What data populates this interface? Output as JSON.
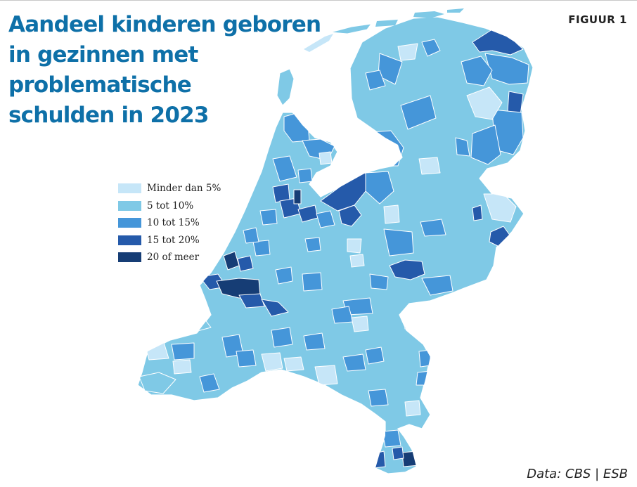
{
  "title_lines": [
    "Aandeel kinderen geboren",
    "in gezinnen met",
    "problematische",
    "schulden in 2023"
  ],
  "figure_label": "FIGUUR 1",
  "source": "Data: CBS | ESB",
  "legend": [
    {
      "label": "Minder dan 5%",
      "color": "#c6e6f8"
    },
    {
      "label": "5 tot 10%",
      "color": "#7fc9e6"
    },
    {
      "label": "10 tot 15%",
      "color": "#4596d9"
    },
    {
      "label": "15 tot 20%",
      "color": "#255aaa"
    },
    {
      "label": "20 of meer",
      "color": "#163d75"
    }
  ]
}
